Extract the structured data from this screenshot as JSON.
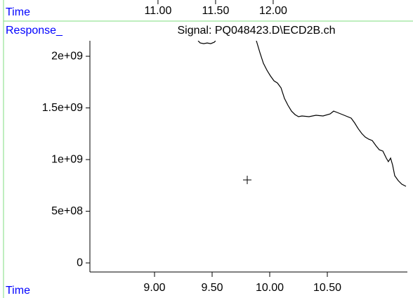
{
  "chart_data": {
    "type": "line",
    "title": "Signal: PQ048423.D\\ECD2B.ch",
    "x_label": "Time",
    "x2_label": "Time",
    "y_label": "Response_",
    "color": "#000000",
    "x": [
      9.378,
      9.396,
      9.427,
      9.457,
      9.488,
      9.518,
      9.53,
      9.7,
      9.884,
      9.915,
      9.945,
      9.976,
      10.006,
      10.037,
      10.067,
      10.098,
      10.128,
      10.159,
      10.189,
      10.22,
      10.25,
      10.28,
      10.341,
      10.402,
      10.463,
      10.524,
      10.555,
      10.585,
      10.646,
      10.707,
      10.738,
      10.768,
      10.799,
      10.829,
      10.86,
      10.89,
      10.921,
      10.951,
      10.982,
      11.012,
      11.03,
      11.049,
      11.067,
      11.085,
      11.116,
      11.146,
      11.183
    ],
    "values": [
      2150000000,
      2129000000,
      2122000000,
      2129000000,
      2122000000,
      2136000000,
      2150000000,
      null,
      2150000000,
      2034000000,
      1932000000,
      1864000000,
      1810000000,
      1762000000,
      1741000000,
      1694000000,
      1592000000,
      1524000000,
      1469000000,
      1435000000,
      1415000000,
      1422000000,
      1415000000,
      1429000000,
      1422000000,
      1442000000,
      1469000000,
      1456000000,
      1429000000,
      1401000000,
      1354000000,
      1299000000,
      1252000000,
      1218000000,
      1197000000,
      1184000000,
      1136000000,
      1095000000,
      1082000000,
      1014000000,
      980000000,
      1014000000,
      946000000,
      844000000,
      796000000,
      762000000,
      741000000
    ],
    "xlim": [
      8.439,
      11.195
    ],
    "xticks": [
      {
        "value": 9,
        "label": "9.00"
      },
      {
        "value": 9.5,
        "label": "9.50"
      },
      {
        "value": 10,
        "label": "10.00"
      },
      {
        "value": 10.5,
        "label": "10.50"
      }
    ],
    "x2lim": [
      10.409,
      13.165
    ],
    "x2ticks": [
      {
        "value": 11,
        "label": "11.00"
      },
      {
        "value": 11.5,
        "label": "11.50"
      },
      {
        "value": 12,
        "label": "12.00"
      }
    ],
    "ylim": [
      -88000000,
      2150000000
    ],
    "yticks": [
      0,
      {
        "value": 500000000,
        "label": "5e+08"
      },
      {
        "value": 1000000000,
        "label": "1e+09"
      },
      {
        "value": 1500000000,
        "label": "1.5e+09"
      },
      {
        "value": 2000000000,
        "label": "2e+09"
      }
    ]
  }
}
